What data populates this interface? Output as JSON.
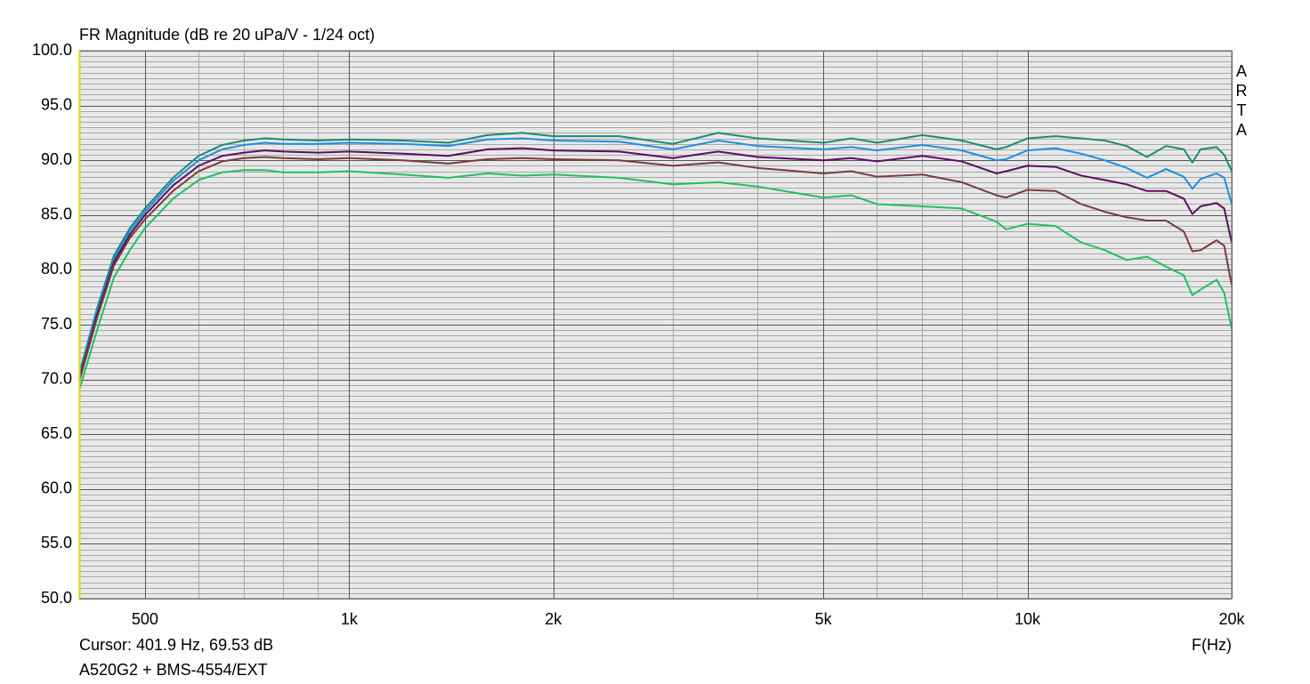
{
  "chart_data": {
    "type": "line",
    "title": "FR Magnitude (dB re 20 uPa/V - 1/24 oct)",
    "watermark": "ARTA",
    "cursor_text": "Cursor: 401.9 Hz, 69.53 dB",
    "footer": "A520G2 + BMS-4554/EXT",
    "x_label": "F(Hz)",
    "x_scale": "log",
    "grid": true,
    "xlim": [
      400,
      20000
    ],
    "xticks": [
      500,
      {
        "value": 1000,
        "label": "1k"
      },
      {
        "value": 2000,
        "label": "2k"
      },
      {
        "value": 5000,
        "label": "5k"
      },
      {
        "value": 10000,
        "label": "10k"
      },
      {
        "value": 20000,
        "label": "20k"
      }
    ],
    "ylim": [
      50,
      100
    ],
    "yticks": [
      {
        "value": 50,
        "label": "50.0"
      },
      {
        "value": 55,
        "label": "55.0"
      },
      {
        "value": 60,
        "label": "60.0"
      },
      {
        "value": 65,
        "label": "65.0"
      },
      {
        "value": 70,
        "label": "70.0"
      },
      {
        "value": 75,
        "label": "75.0"
      },
      {
        "value": 80,
        "label": "80.0"
      },
      {
        "value": 85,
        "label": "85.0"
      },
      {
        "value": 90,
        "label": "90.0"
      },
      {
        "value": 95,
        "label": "95.0"
      },
      {
        "value": 100,
        "label": "100.0"
      }
    ],
    "x": [
      400,
      425,
      450,
      475,
      500,
      550,
      600,
      650,
      700,
      750,
      800,
      900,
      1000,
      1200,
      1400,
      1600,
      1800,
      2000,
      2500,
      3000,
      3500,
      4000,
      5000,
      5500,
      6000,
      7000,
      8000,
      9000,
      9300,
      10000,
      11000,
      12000,
      13000,
      14000,
      15000,
      16000,
      17000,
      17500,
      18000,
      19000,
      19500,
      20000
    ],
    "series": [
      {
        "color": "#1b8a78",
        "values": [
          70.5,
          76.5,
          81.3,
          83.8,
          85.6,
          88.4,
          90.4,
          91.4,
          91.8,
          92.0,
          91.9,
          91.8,
          91.9,
          91.8,
          91.6,
          92.3,
          92.5,
          92.2,
          92.2,
          91.5,
          92.5,
          92.0,
          91.6,
          92.0,
          91.6,
          92.3,
          91.8,
          91.0,
          91.2,
          92.0,
          92.2,
          92.0,
          91.8,
          91.3,
          90.3,
          91.3,
          91.0,
          89.8,
          91.0,
          91.2,
          90.5,
          89.0
        ]
      },
      {
        "color": "#1e8fe0",
        "values": [
          70.2,
          76.2,
          81.0,
          83.5,
          85.3,
          88.1,
          90.0,
          91.0,
          91.4,
          91.6,
          91.5,
          91.5,
          91.6,
          91.5,
          91.3,
          91.9,
          92.0,
          91.8,
          91.7,
          91.0,
          91.8,
          91.3,
          91.0,
          91.2,
          90.9,
          91.4,
          90.9,
          90.0,
          90.1,
          90.9,
          91.1,
          90.6,
          90.0,
          89.3,
          88.4,
          89.2,
          88.5,
          87.4,
          88.3,
          88.8,
          88.4,
          86.0
        ]
      },
      {
        "color": "#5c0d5e",
        "values": [
          70.0,
          75.9,
          80.7,
          83.2,
          85.0,
          87.7,
          89.5,
          90.4,
          90.7,
          90.9,
          90.8,
          90.7,
          90.8,
          90.6,
          90.4,
          91.0,
          91.1,
          90.9,
          90.8,
          90.2,
          90.8,
          90.3,
          90.0,
          90.2,
          89.9,
          90.4,
          89.9,
          88.8,
          89.0,
          89.5,
          89.4,
          88.6,
          88.2,
          87.8,
          87.2,
          87.2,
          86.5,
          85.1,
          85.8,
          86.1,
          85.6,
          82.5
        ]
      },
      {
        "color": "#7a3c3c",
        "values": [
          69.8,
          75.6,
          80.4,
          82.9,
          84.6,
          87.2,
          89.0,
          89.9,
          90.2,
          90.3,
          90.2,
          90.1,
          90.2,
          90.0,
          89.7,
          90.1,
          90.2,
          90.1,
          90.0,
          89.5,
          89.8,
          89.3,
          88.8,
          89.0,
          88.5,
          88.7,
          88.0,
          86.8,
          86.6,
          87.3,
          87.2,
          86.0,
          85.3,
          84.8,
          84.5,
          84.5,
          83.5,
          81.7,
          81.8,
          82.7,
          82.2,
          78.6
        ]
      },
      {
        "color": "#22c062",
        "values": [
          69.0,
          74.5,
          79.3,
          81.8,
          83.8,
          86.5,
          88.2,
          88.9,
          89.1,
          89.1,
          88.9,
          88.9,
          89.0,
          88.7,
          88.4,
          88.8,
          88.6,
          88.7,
          88.4,
          87.8,
          88.0,
          87.6,
          86.6,
          86.8,
          86.0,
          85.8,
          85.6,
          84.4,
          83.7,
          84.2,
          84.0,
          82.5,
          81.8,
          80.9,
          81.2,
          80.3,
          79.5,
          77.7,
          78.2,
          79.1,
          77.9,
          74.6
        ]
      }
    ]
  }
}
